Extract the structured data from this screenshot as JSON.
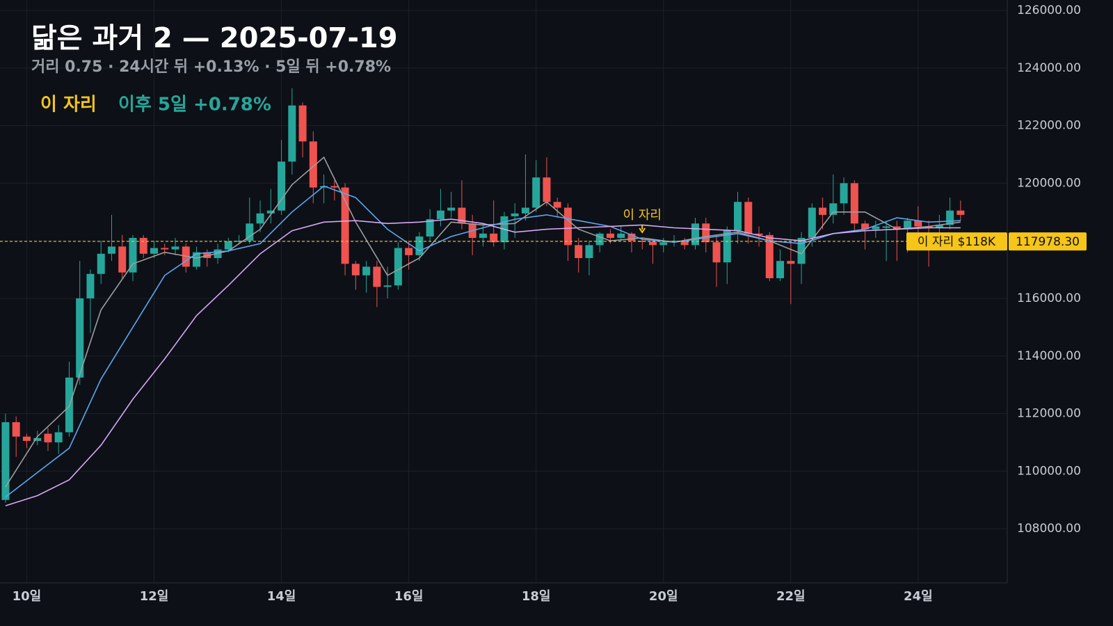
{
  "chart_data": {
    "type": "candlestick",
    "title": "닮은 과거 2 — 2025-07-19",
    "subtitle": "거리 0.75 · 24시간 뒤 +0.13% · 5일 뒤 +0.78%",
    "marker_legend": "이 자리",
    "outcome_legend": "이후 5일 +0.78%",
    "up_color": "#26a69a",
    "down_color": "#ef5350",
    "x": [
      0,
      1,
      2,
      3,
      4,
      5,
      6,
      7,
      8,
      9,
      10,
      11,
      12,
      13,
      14,
      15,
      16,
      17,
      18,
      19,
      20,
      21,
      22,
      23,
      24,
      25,
      26,
      27,
      28,
      29,
      30,
      31,
      32,
      33,
      34,
      35,
      36,
      37,
      38,
      39,
      40,
      41,
      42,
      43,
      44,
      45,
      46,
      47,
      48,
      49,
      50,
      51,
      52,
      53,
      54,
      55,
      56,
      57,
      58,
      59,
      60,
      61,
      62,
      63,
      64,
      65,
      66,
      67,
      68,
      69,
      70,
      71,
      72,
      73,
      74,
      75,
      76,
      77,
      78,
      79,
      80,
      81,
      82,
      83,
      84,
      85,
      86,
      87,
      88,
      89,
      90
    ],
    "open": [
      109000,
      111700,
      111200,
      111050,
      111300,
      111000,
      111350,
      113250,
      116000,
      116850,
      117550,
      117800,
      116900,
      118100,
      117550,
      117750,
      117700,
      117800,
      117100,
      117600,
      117400,
      117700,
      117980,
      118000,
      118600,
      118950,
      119050,
      120750,
      122700,
      121450,
      119850,
      119900,
      119850,
      117200,
      116800,
      117100,
      116400,
      116450,
      117750,
      117500,
      118150,
      118750,
      119050,
      119150,
      118600,
      118100,
      118250,
      117950,
      118850,
      118950,
      119150,
      120200,
      119350,
      119150,
      117850,
      117400,
      117850,
      118250,
      118100,
      118250,
      118000,
      117970,
      117850,
      117950,
      118000,
      117850,
      118600,
      117950,
      117250,
      118350,
      119350,
      118250,
      118200,
      116700,
      117300,
      117200,
      118100,
      119150,
      118900,
      119300,
      120000,
      118600,
      118400,
      118450,
      118500,
      118400,
      118700,
      118500,
      118450,
      118550,
      119050
    ],
    "high": [
      112000,
      111900,
      111300,
      111400,
      111500,
      111600,
      113800,
      117300,
      117000,
      118000,
      118900,
      118200,
      118200,
      118200,
      118000,
      117900,
      118100,
      117900,
      117800,
      117700,
      117900,
      118100,
      118200,
      119500,
      119400,
      119800,
      121500,
      123300,
      122800,
      121800,
      120300,
      120100,
      120000,
      117300,
      117300,
      117300,
      117100,
      117950,
      118000,
      118300,
      119100,
      119800,
      119700,
      120100,
      118900,
      118600,
      119400,
      119000,
      119300,
      121000,
      120800,
      120900,
      119500,
      119300,
      118100,
      118000,
      118300,
      118400,
      118500,
      118300,
      118100,
      118000,
      118100,
      118200,
      118100,
      118800,
      118800,
      118200,
      118500,
      119700,
      119500,
      118500,
      118300,
      117700,
      118000,
      118300,
      119300,
      119500,
      120300,
      120200,
      120100,
      118700,
      118700,
      118700,
      118700,
      118800,
      119200,
      118700,
      118900,
      119500,
      119400
    ],
    "low": [
      108900,
      110500,
      110800,
      110900,
      110700,
      110600,
      111200,
      113000,
      114800,
      116500,
      117300,
      116700,
      116600,
      117400,
      117400,
      117500,
      117500,
      116900,
      117000,
      117100,
      117200,
      117600,
      117900,
      117900,
      118300,
      118600,
      118900,
      120300,
      120900,
      119300,
      119300,
      119400,
      116800,
      116300,
      116200,
      115700,
      116000,
      116300,
      117000,
      117300,
      118000,
      118500,
      118800,
      118400,
      117500,
      117800,
      117800,
      117700,
      118100,
      118700,
      119000,
      119200,
      118800,
      117300,
      116900,
      116800,
      117600,
      117900,
      118000,
      117600,
      117700,
      117200,
      117600,
      117800,
      117700,
      117700,
      117600,
      116400,
      116500,
      117900,
      117900,
      117800,
      116600,
      116600,
      115800,
      116500,
      117800,
      118400,
      118600,
      118900,
      118300,
      117700,
      118100,
      117300,
      117300,
      117600,
      118000,
      117100,
      118200,
      118400,
      118700
    ],
    "close": [
      111700,
      111200,
      111050,
      111150,
      111000,
      111350,
      113250,
      116000,
      116850,
      117550,
      117800,
      116900,
      118100,
      117550,
      117750,
      117700,
      117800,
      117100,
      117600,
      117400,
      117700,
      117980,
      118000,
      118600,
      118950,
      119050,
      120750,
      122700,
      121450,
      119850,
      119900,
      119850,
      117200,
      116800,
      117100,
      116400,
      116450,
      117750,
      117500,
      118150,
      118750,
      119050,
      119150,
      118600,
      118100,
      118250,
      117950,
      118850,
      118950,
      119150,
      120200,
      119350,
      119150,
      117850,
      117400,
      117850,
      118250,
      118100,
      118250,
      118000,
      117970,
      117850,
      117950,
      118000,
      117850,
      118600,
      117950,
      117250,
      118350,
      119350,
      118250,
      118200,
      116700,
      117300,
      117200,
      118100,
      119150,
      118900,
      119300,
      120000,
      118600,
      118400,
      118500,
      118500,
      118400,
      118700,
      118500,
      118450,
      118550,
      119050,
      118900
    ],
    "lines": [
      {
        "color": "#9e9e9e",
        "x": [
          0,
          3,
          6,
          9,
          12,
          15,
          18,
          21,
          24,
          27,
          30,
          33,
          36,
          39,
          42,
          45,
          48,
          51,
          54,
          57,
          60,
          63,
          66,
          69,
          72,
          75,
          78,
          81,
          84,
          87,
          90
        ],
        "values": [
          109450,
          111200,
          112250,
          115600,
          117200,
          117600,
          117400,
          117650,
          118400,
          119950,
          120900,
          118650,
          116800,
          117400,
          118650,
          118550,
          118600,
          119350,
          118400,
          118000,
          118100,
          117950,
          118150,
          118300,
          118000,
          117550,
          119000,
          119000,
          118400,
          118500,
          118650
        ]
      },
      {
        "color": "#5aa9f0",
        "x": [
          0,
          3,
          6,
          9,
          12,
          15,
          18,
          21,
          24,
          27,
          30,
          33,
          36,
          39,
          42,
          45,
          48,
          51,
          54,
          57,
          60,
          63,
          66,
          69,
          72,
          75,
          78,
          81,
          84,
          87,
          90
        ],
        "values": [
          109100,
          109950,
          110800,
          113200,
          115000,
          116800,
          117550,
          117650,
          117900,
          119000,
          119900,
          119500,
          118400,
          117650,
          118150,
          118450,
          118750,
          118900,
          118700,
          118500,
          118050,
          117950,
          118100,
          118250,
          118000,
          117900,
          118250,
          118400,
          118800,
          118650,
          118700
        ]
      },
      {
        "color": "#d6a8f5",
        "x": [
          0,
          3,
          6,
          9,
          12,
          15,
          18,
          21,
          24,
          27,
          30,
          33,
          36,
          39,
          42,
          45,
          48,
          51,
          54,
          57,
          60,
          63,
          66,
          69,
          72,
          75,
          78,
          81,
          84,
          87,
          90
        ],
        "values": [
          108800,
          109150,
          109700,
          110900,
          112500,
          113900,
          115400,
          116450,
          117550,
          118350,
          118650,
          118700,
          118600,
          118650,
          118750,
          118600,
          118300,
          118400,
          118450,
          118500,
          118550,
          118450,
          118400,
          118350,
          118100,
          118000,
          118250,
          118350,
          118400,
          118450,
          118450
        ]
      }
    ],
    "annotation": {
      "text": "이 자리",
      "x": 60,
      "color": "#f5c518"
    },
    "price_line": {
      "value": 117978.3,
      "label": "117978.30",
      "tag": "이 자리 $118K",
      "color": "#f5c518"
    },
    "xlim": [
      -0.52,
      94.4
    ],
    "ylim": [
      106120,
      126362
    ],
    "xticks": [
      {
        "value": 2,
        "label": "10일"
      },
      {
        "value": 14,
        "label": "12일"
      },
      {
        "value": 26,
        "label": "14일"
      },
      {
        "value": 38,
        "label": "16일"
      },
      {
        "value": 50,
        "label": "18일"
      },
      {
        "value": 62,
        "label": "20일"
      },
      {
        "value": 74,
        "label": "22일"
      },
      {
        "value": 86,
        "label": "24일"
      }
    ],
    "yticks": [
      {
        "value": 108000,
        "label": "108000.00"
      },
      {
        "value": 110000,
        "label": "110000.00"
      },
      {
        "value": 112000,
        "label": "112000.00"
      },
      {
        "value": 114000,
        "label": "114000.00"
      },
      {
        "value": 116000,
        "label": "116000.00"
      },
      {
        "value": 118000,
        "label": "118000.00"
      },
      {
        "value": 120000,
        "label": "120000.00"
      },
      {
        "value": 122000,
        "label": "122000.00"
      },
      {
        "value": 124000,
        "label": "124000.00"
      },
      {
        "value": 126000,
        "label": "126000.00"
      }
    ],
    "grid": true
  }
}
